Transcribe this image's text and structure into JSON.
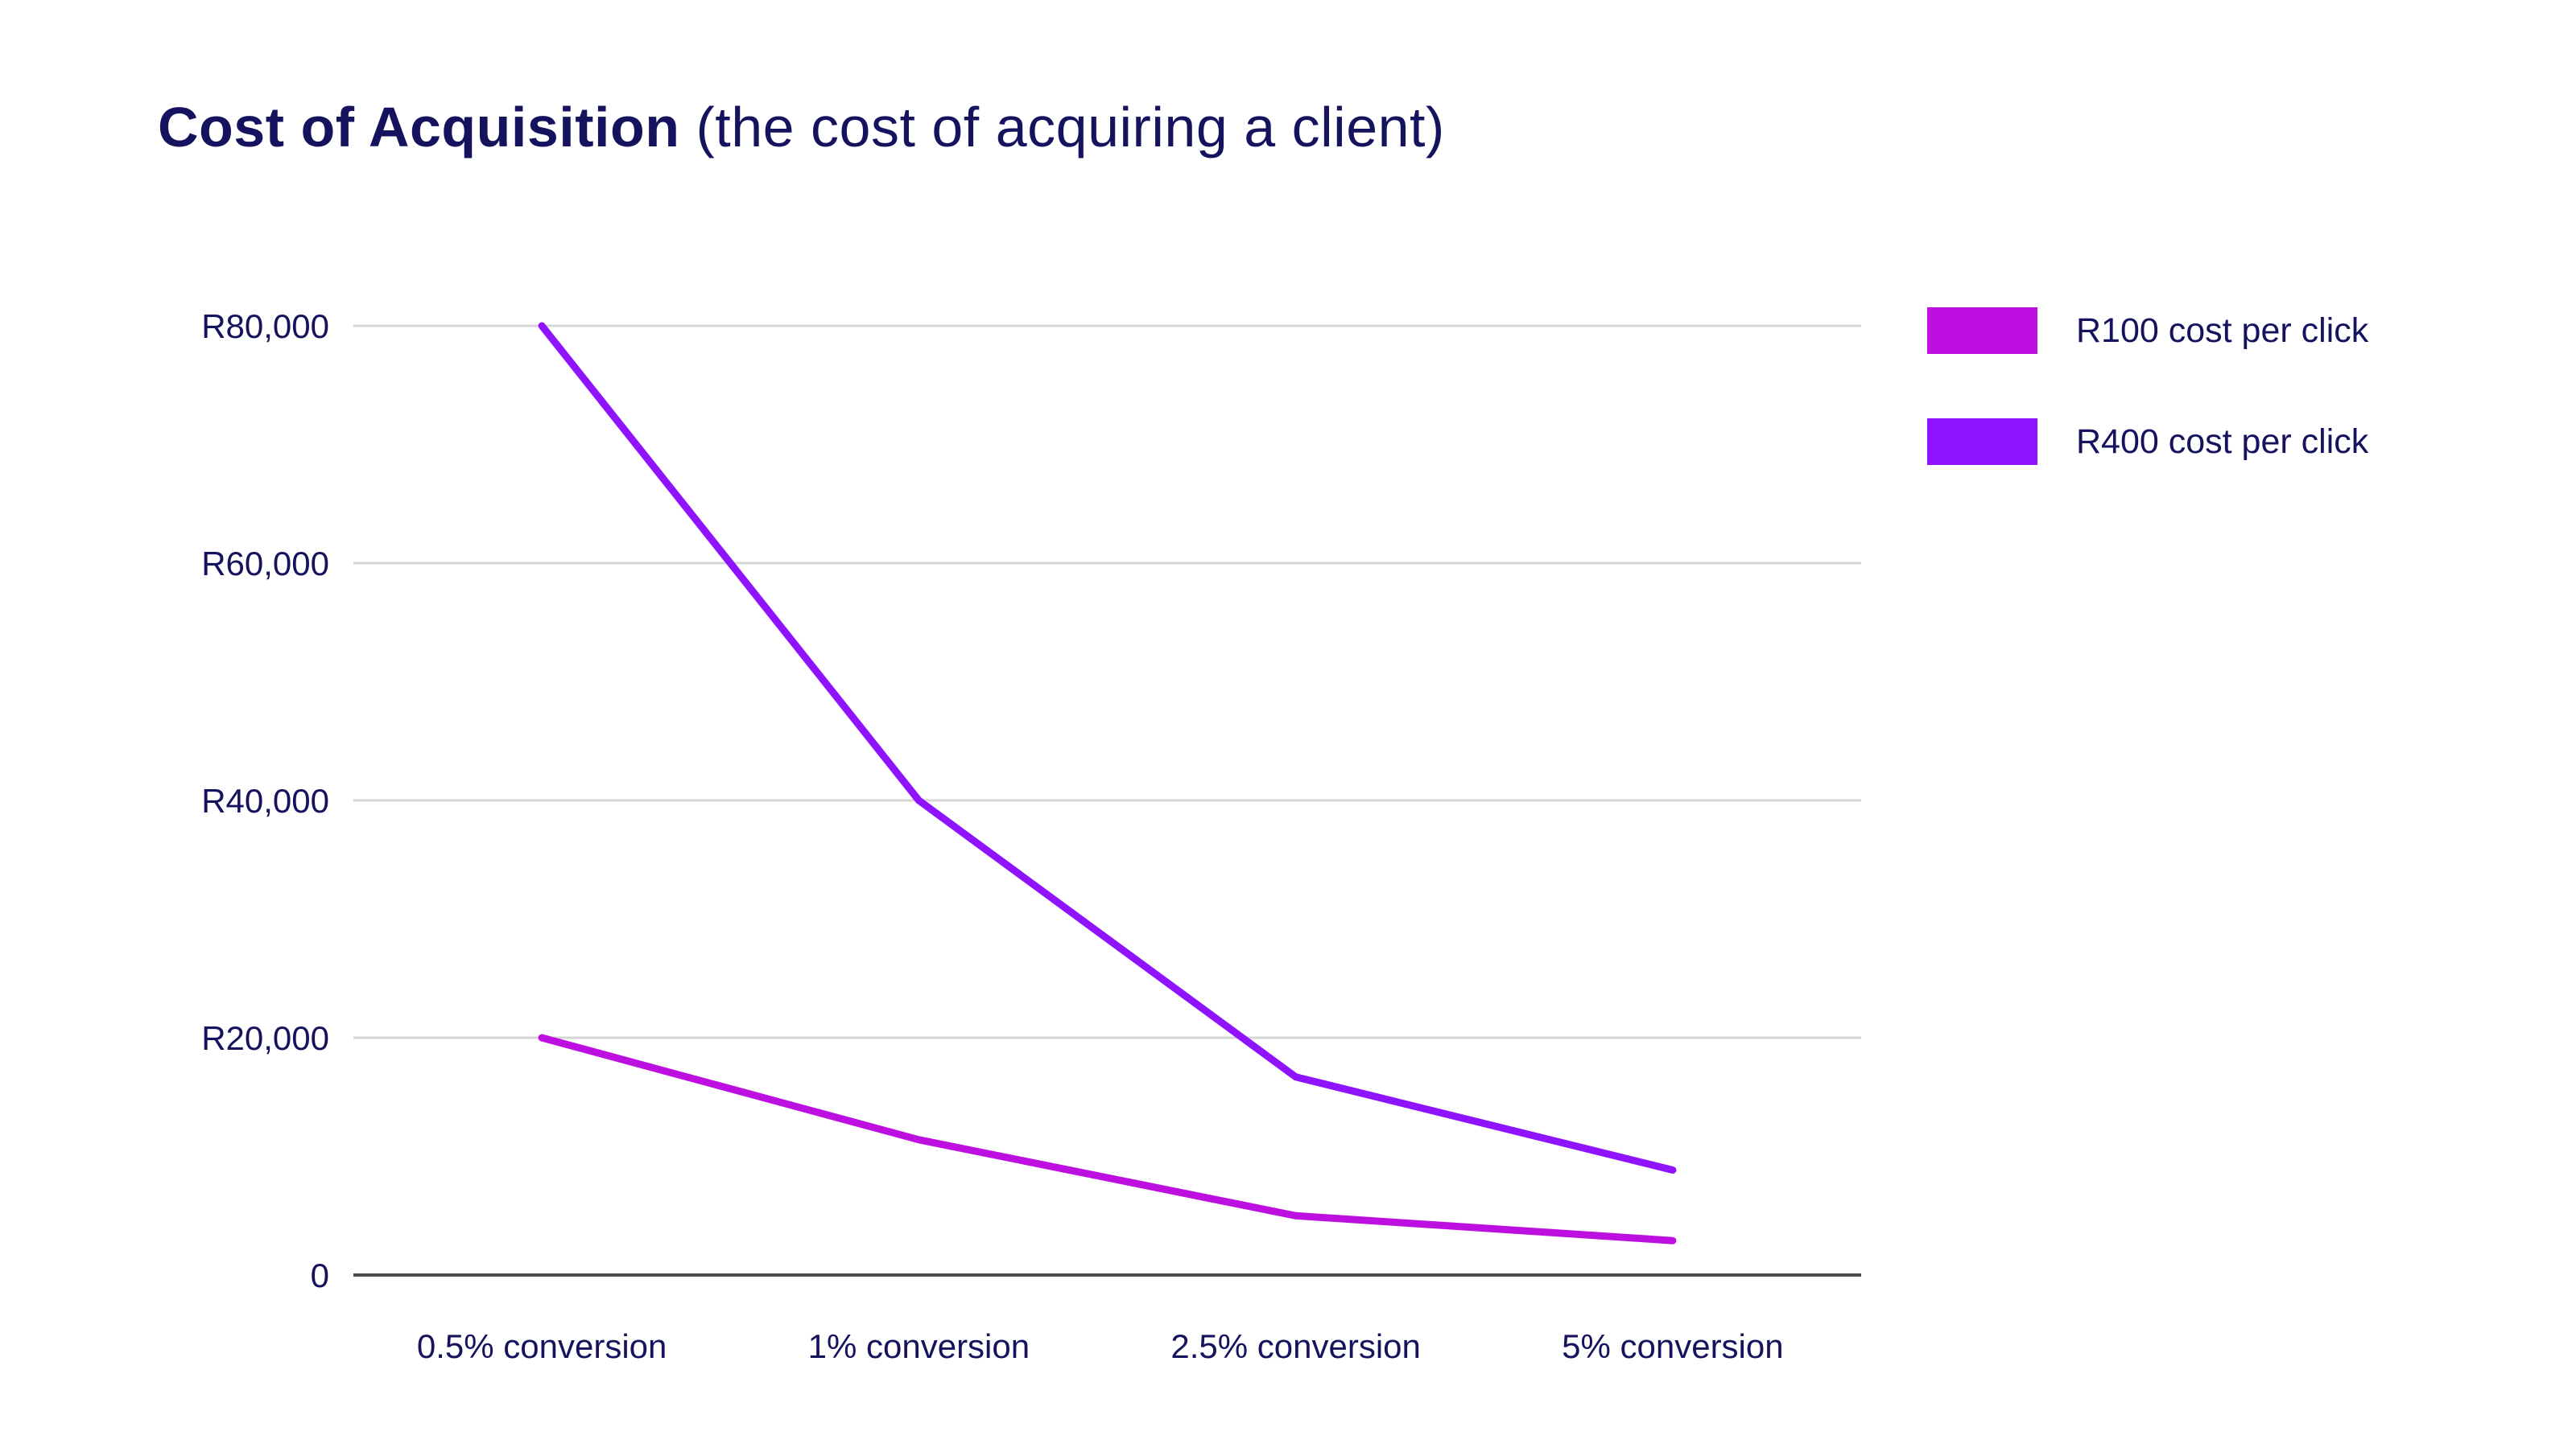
{
  "title": {
    "bold": "Cost of Acquisition",
    "regular": " (the cost of acquiring a client)"
  },
  "colors": {
    "text": "#16135e",
    "grid": "#d6d6d6",
    "axis": "#4a4a4a"
  },
  "chart_data": {
    "type": "line",
    "title": "Cost of Acquisition (the cost of acquiring a client)",
    "xlabel": "",
    "ylabel": "",
    "categories": [
      "0.5% conversion",
      "1% conversion",
      "2.5% conversion",
      "5% conversion"
    ],
    "yticks": [
      0,
      20000,
      40000,
      60000,
      80000
    ],
    "ytick_labels": [
      "0",
      "R20,000",
      "R40,000",
      "R60,000",
      "R80,000"
    ],
    "ylim": [
      0,
      80000
    ],
    "grid": true,
    "legend_position": "right",
    "series": [
      {
        "name": "R100 cost per click",
        "color": "#bd10e0",
        "values": [
          20000,
          11400,
          5000,
          2900
        ]
      },
      {
        "name": "R400 cost per click",
        "color": "#9013fe",
        "values": [
          80000,
          40000,
          16700,
          8850
        ]
      }
    ]
  }
}
